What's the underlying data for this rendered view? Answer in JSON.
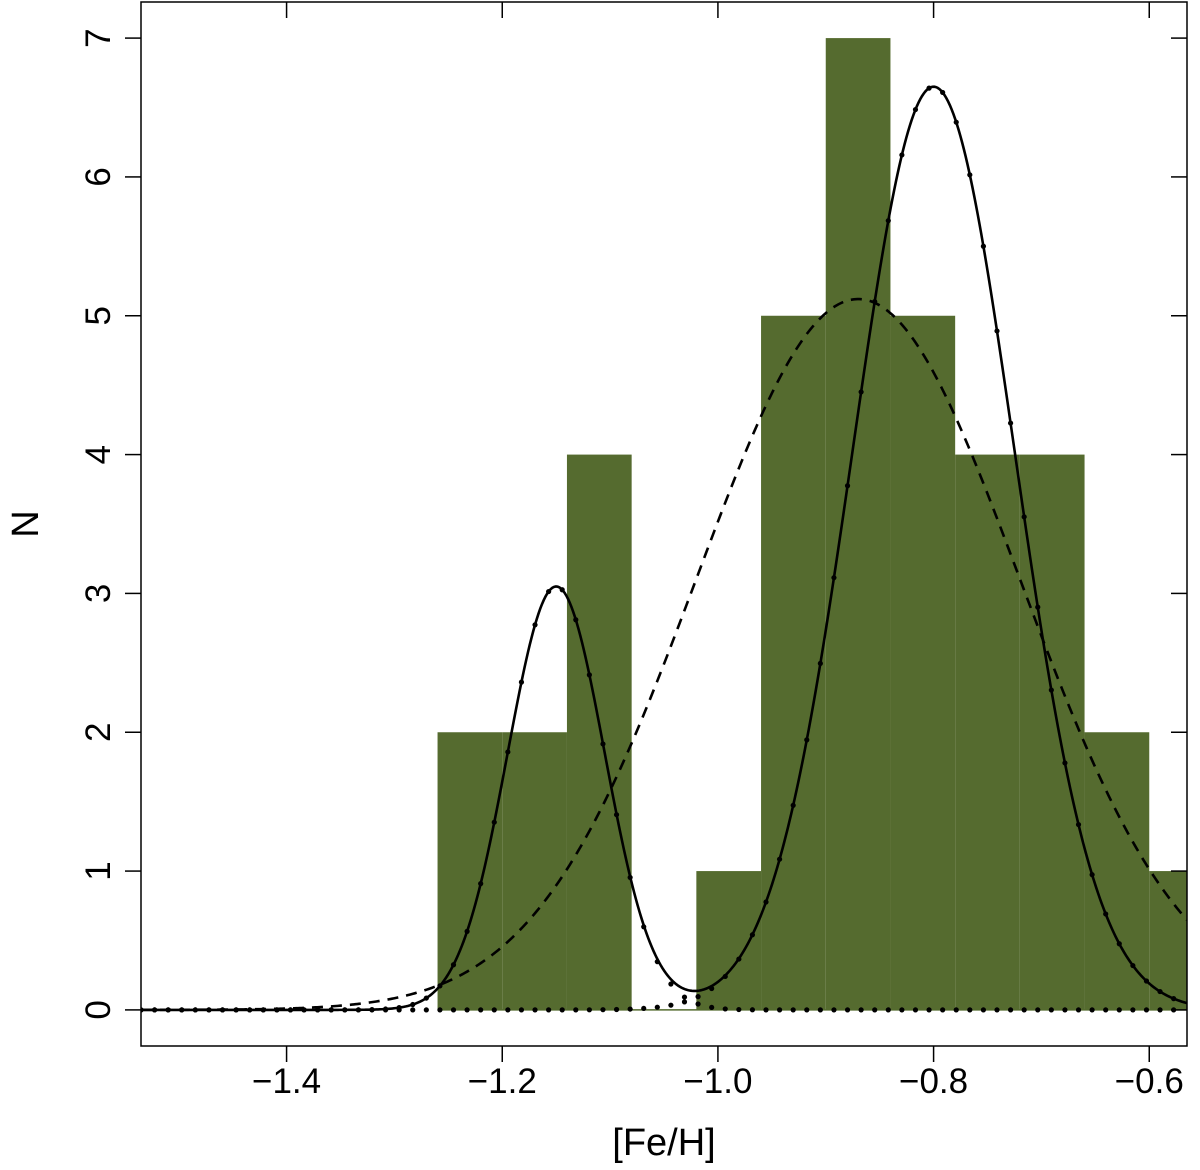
{
  "chart_data": {
    "type": "bar",
    "title": "",
    "xlabel": "[Fe/H]",
    "ylabel": "N",
    "xlim": [
      -1.535,
      -0.565
    ],
    "ylim": [
      -0.26,
      7.26
    ],
    "grid": false,
    "legend": "none",
    "histogram": {
      "color": "#556b2f",
      "bin_width": 0.06,
      "bins": [
        {
          "x0": -1.26,
          "x1": -1.2,
          "count": 2
        },
        {
          "x0": -1.2,
          "x1": -1.14,
          "count": 2
        },
        {
          "x0": -1.14,
          "x1": -1.08,
          "count": 4
        },
        {
          "x0": -1.08,
          "x1": -1.02,
          "count": 0
        },
        {
          "x0": -1.02,
          "x1": -0.96,
          "count": 1
        },
        {
          "x0": -0.96,
          "x1": -0.9,
          "count": 5
        },
        {
          "x0": -0.9,
          "x1": -0.84,
          "count": 7
        },
        {
          "x0": -0.84,
          "x1": -0.78,
          "count": 5
        },
        {
          "x0": -0.78,
          "x1": -0.72,
          "count": 4
        },
        {
          "x0": -0.72,
          "x1": -0.66,
          "count": 4
        },
        {
          "x0": -0.66,
          "x1": -0.6,
          "count": 2
        },
        {
          "x0": -0.6,
          "x1": -0.54,
          "count": 1
        }
      ]
    },
    "series": [
      {
        "style": "dotted",
        "kind": "gaussian",
        "amplitude": 3.05,
        "mean": -1.15,
        "sigma": 0.045
      },
      {
        "style": "dotted",
        "kind": "gaussian",
        "amplitude": 6.65,
        "mean": -0.8,
        "sigma": 0.075
      },
      {
        "style": "solid",
        "kind": "sum_of_components"
      },
      {
        "style": "dashed",
        "kind": "gaussian",
        "amplitude": 5.12,
        "mean": -0.87,
        "sigma": 0.15
      }
    ],
    "x_ticks": [
      {
        "value": -1.4,
        "label": "−1.4"
      },
      {
        "value": -1.2,
        "label": "−1.2"
      },
      {
        "value": -1.0,
        "label": "−1.0"
      },
      {
        "value": -0.8,
        "label": "−0.8"
      },
      {
        "value": -0.6,
        "label": "−0.6"
      }
    ],
    "y_ticks": [
      {
        "value": 0,
        "label": "0"
      },
      {
        "value": 1,
        "label": "1"
      },
      {
        "value": 2,
        "label": "2"
      },
      {
        "value": 3,
        "label": "3"
      },
      {
        "value": 4,
        "label": "4"
      },
      {
        "value": 5,
        "label": "5"
      },
      {
        "value": 6,
        "label": "6"
      },
      {
        "value": 7,
        "label": "7"
      }
    ]
  }
}
